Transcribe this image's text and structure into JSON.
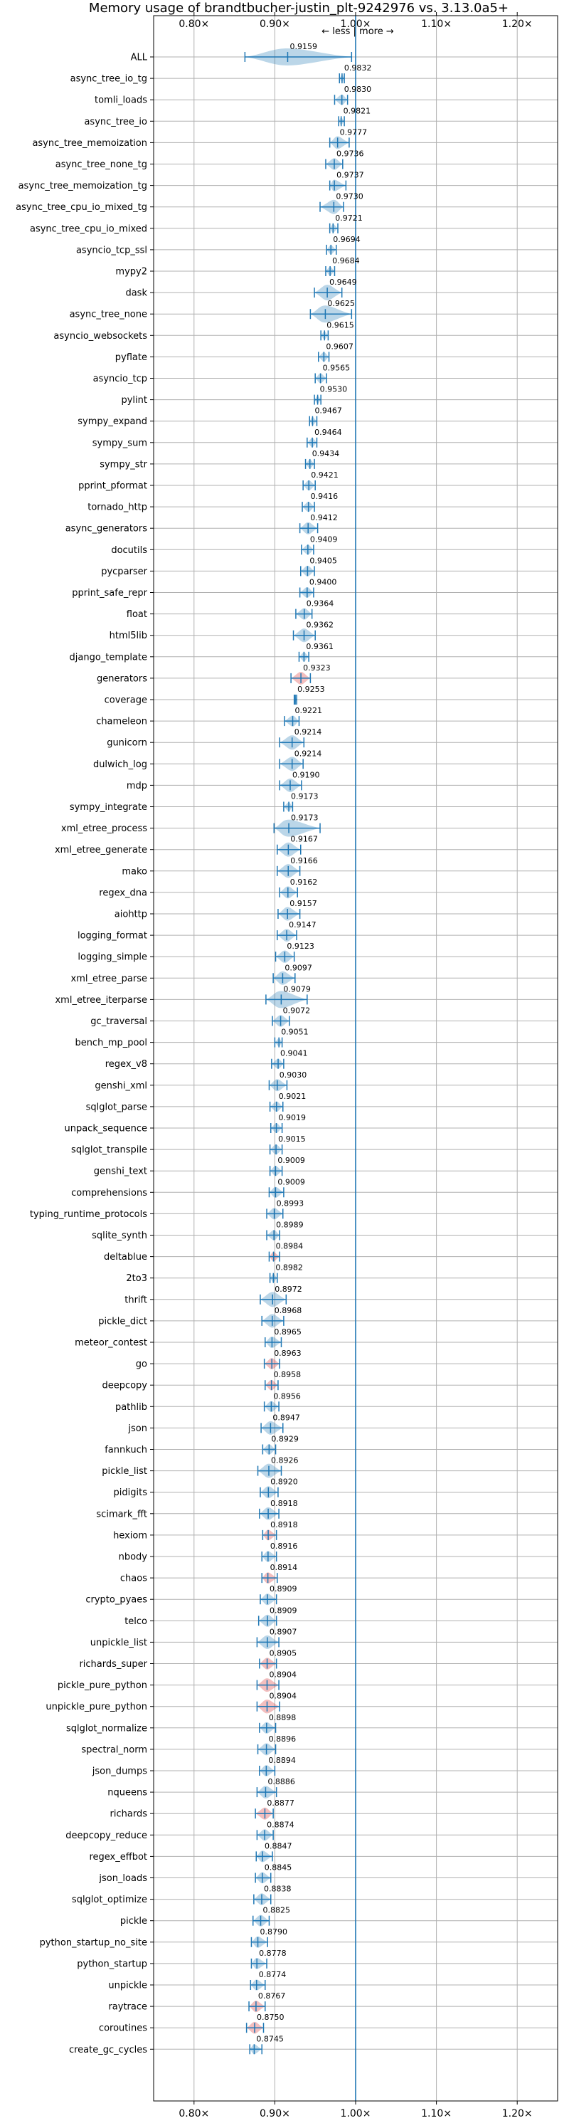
{
  "chart_data": {
    "type": "violin",
    "title": "Memory usage of brandtbucher-justin_plt-9242976 vs. 3.13.0a5+",
    "annotation": "← less | more →",
    "xlim": [
      0.75,
      1.25
    ],
    "xticks": [
      0.8,
      0.9,
      1.0,
      1.1,
      1.2
    ],
    "xtick_labels": [
      "0.80×",
      "0.90×",
      "1.00×",
      "1.10×",
      "1.20×"
    ],
    "reference_line": 1.0,
    "grid": true,
    "colors": {
      "normal": "#1f77b4",
      "worse": "#d62728",
      "reference": "#1f77b4"
    },
    "categories": [
      "ALL",
      "async_tree_io_tg",
      "tomli_loads",
      "async_tree_io",
      "async_tree_memoization",
      "async_tree_none_tg",
      "async_tree_memoization_tg",
      "async_tree_cpu_io_mixed_tg",
      "async_tree_cpu_io_mixed",
      "asyncio_tcp_ssl",
      "mypy2",
      "dask",
      "async_tree_none",
      "asyncio_websockets",
      "pyflate",
      "asyncio_tcp",
      "pylint",
      "sympy_expand",
      "sympy_sum",
      "sympy_str",
      "pprint_pformat",
      "tornado_http",
      "async_generators",
      "docutils",
      "pycparser",
      "pprint_safe_repr",
      "float",
      "html5lib",
      "django_template",
      "generators",
      "coverage",
      "chameleon",
      "gunicorn",
      "dulwich_log",
      "mdp",
      "sympy_integrate",
      "xml_etree_process",
      "xml_etree_generate",
      "mako",
      "regex_dna",
      "aiohttp",
      "logging_format",
      "logging_simple",
      "xml_etree_parse",
      "xml_etree_iterparse",
      "gc_traversal",
      "bench_mp_pool",
      "regex_v8",
      "genshi_xml",
      "sqlglot_parse",
      "unpack_sequence",
      "sqlglot_transpile",
      "genshi_text",
      "comprehensions",
      "typing_runtime_protocols",
      "sqlite_synth",
      "deltablue",
      "2to3",
      "thrift",
      "pickle_dict",
      "meteor_contest",
      "go",
      "deepcopy",
      "pathlib",
      "json",
      "fannkuch",
      "pickle_list",
      "pidigits",
      "scimark_fft",
      "hexiom",
      "nbody",
      "chaos",
      "crypto_pyaes",
      "telco",
      "unpickle_list",
      "richards_super",
      "pickle_pure_python",
      "unpickle_pure_python",
      "sqlglot_normalize",
      "spectral_norm",
      "json_dumps",
      "nqueens",
      "richards",
      "deepcopy_reduce",
      "regex_effbot",
      "json_loads",
      "sqlglot_optimize",
      "pickle",
      "python_startup_no_site",
      "python_startup",
      "unpickle",
      "raytrace",
      "coroutines",
      "create_gc_cycles"
    ],
    "values": [
      0.9159,
      0.9832,
      0.983,
      0.9821,
      0.9777,
      0.9736,
      0.9737,
      0.973,
      0.9721,
      0.9694,
      0.9684,
      0.9649,
      0.9625,
      0.9615,
      0.9607,
      0.9565,
      0.953,
      0.9467,
      0.9464,
      0.9434,
      0.9421,
      0.9416,
      0.9412,
      0.9409,
      0.9405,
      0.94,
      0.9364,
      0.9362,
      0.9361,
      0.9323,
      0.9253,
      0.9221,
      0.9214,
      0.9214,
      0.919,
      0.9173,
      0.9173,
      0.9167,
      0.9166,
      0.9162,
      0.9157,
      0.9147,
      0.9123,
      0.9097,
      0.9079,
      0.9072,
      0.9051,
      0.9041,
      0.903,
      0.9021,
      0.9019,
      0.9015,
      0.9009,
      0.9009,
      0.8993,
      0.8989,
      0.8984,
      0.8982,
      0.8972,
      0.8968,
      0.8965,
      0.8963,
      0.8958,
      0.8956,
      0.8947,
      0.8929,
      0.8926,
      0.892,
      0.8918,
      0.8918,
      0.8916,
      0.8914,
      0.8909,
      0.8909,
      0.8907,
      0.8905,
      0.8904,
      0.8904,
      0.8898,
      0.8896,
      0.8894,
      0.8886,
      0.8877,
      0.8874,
      0.8847,
      0.8845,
      0.8838,
      0.8825,
      0.879,
      0.8778,
      0.8774,
      0.8767,
      0.875,
      0.8745
    ],
    "value_labels": [
      "0.9159",
      "0.9832",
      "0.9830",
      "0.9821",
      "0.9777",
      "0.9736",
      "0.9737",
      "0.9730",
      "0.9721",
      "0.9694",
      "0.9684",
      "0.9649",
      "0.9625",
      "0.9615",
      "0.9607",
      "0.9565",
      "0.9530",
      "0.9467",
      "0.9464",
      "0.9434",
      "0.9421",
      "0.9416",
      "0.9412",
      "0.9409",
      "0.9405",
      "0.9400",
      "0.9364",
      "0.9362",
      "0.9361",
      "0.9323",
      "0.9253",
      "0.9221",
      "0.9214",
      "0.9214",
      "0.9190",
      "0.9173",
      "0.9173",
      "0.9167",
      "0.9166",
      "0.9162",
      "0.9157",
      "0.9147",
      "0.9123",
      "0.9097",
      "0.9079",
      "0.9072",
      "0.9051",
      "0.9041",
      "0.9030",
      "0.9021",
      "0.9019",
      "0.9015",
      "0.9009",
      "0.9009",
      "0.8993",
      "0.8989",
      "0.8984",
      "0.8982",
      "0.8972",
      "0.8968",
      "0.8965",
      "0.8963",
      "0.8958",
      "0.8956",
      "0.8947",
      "0.8929",
      "0.8926",
      "0.8920",
      "0.8918",
      "0.8918",
      "0.8916",
      "0.8914",
      "0.8909",
      "0.8909",
      "0.8907",
      "0.8905",
      "0.8904",
      "0.8904",
      "0.8898",
      "0.8896",
      "0.8894",
      "0.8886",
      "0.8877",
      "0.8874",
      "0.8847",
      "0.8845",
      "0.8838",
      "0.8825",
      "0.8790",
      "0.8778",
      "0.8774",
      "0.8767",
      "0.8750",
      "0.8745"
    ],
    "ranges": [
      [
        0.863,
        0.995
      ],
      [
        0.98,
        0.986
      ],
      [
        0.974,
        0.99
      ],
      [
        0.979,
        0.986
      ],
      [
        0.968,
        0.992
      ],
      [
        0.963,
        0.984
      ],
      [
        0.968,
        0.988
      ],
      [
        0.956,
        0.985
      ],
      [
        0.968,
        0.978
      ],
      [
        0.964,
        0.976
      ],
      [
        0.963,
        0.974
      ],
      [
        0.949,
        0.983
      ],
      [
        0.944,
        0.995
      ],
      [
        0.957,
        0.966
      ],
      [
        0.954,
        0.967
      ],
      [
        0.95,
        0.964
      ],
      [
        0.949,
        0.957
      ],
      [
        0.943,
        0.952
      ],
      [
        0.94,
        0.952
      ],
      [
        0.938,
        0.949
      ],
      [
        0.935,
        0.95
      ],
      [
        0.934,
        0.949
      ],
      [
        0.931,
        0.953
      ],
      [
        0.933,
        0.948
      ],
      [
        0.932,
        0.949
      ],
      [
        0.931,
        0.948
      ],
      [
        0.926,
        0.946
      ],
      [
        0.923,
        0.95
      ],
      [
        0.93,
        0.942
      ],
      [
        0.92,
        0.944
      ],
      [
        0.924,
        0.927
      ],
      [
        0.912,
        0.93
      ],
      [
        0.906,
        0.936
      ],
      [
        0.906,
        0.935
      ],
      [
        0.906,
        0.933
      ],
      [
        0.911,
        0.922
      ],
      [
        0.899,
        0.956
      ],
      [
        0.903,
        0.932
      ],
      [
        0.903,
        0.931
      ],
      [
        0.906,
        0.928
      ],
      [
        0.904,
        0.931
      ],
      [
        0.903,
        0.927
      ],
      [
        0.901,
        0.924
      ],
      [
        0.898,
        0.925
      ],
      [
        0.889,
        0.94
      ],
      [
        0.897,
        0.918
      ],
      [
        0.9,
        0.909
      ],
      [
        0.896,
        0.911
      ],
      [
        0.893,
        0.915
      ],
      [
        0.894,
        0.91
      ],
      [
        0.895,
        0.909
      ],
      [
        0.894,
        0.909
      ],
      [
        0.894,
        0.909
      ],
      [
        0.893,
        0.911
      ],
      [
        0.89,
        0.91
      ],
      [
        0.89,
        0.906
      ],
      [
        0.893,
        0.906
      ],
      [
        0.894,
        0.903
      ],
      [
        0.882,
        0.914
      ],
      [
        0.884,
        0.911
      ],
      [
        0.888,
        0.908
      ],
      [
        0.887,
        0.906
      ],
      [
        0.888,
        0.904
      ],
      [
        0.887,
        0.905
      ],
      [
        0.883,
        0.91
      ],
      [
        0.885,
        0.901
      ],
      [
        0.879,
        0.908
      ],
      [
        0.882,
        0.904
      ],
      [
        0.881,
        0.905
      ],
      [
        0.885,
        0.902
      ],
      [
        0.884,
        0.902
      ],
      [
        0.884,
        0.903
      ],
      [
        0.882,
        0.902
      ],
      [
        0.88,
        0.902
      ],
      [
        0.878,
        0.905
      ],
      [
        0.881,
        0.902
      ],
      [
        0.878,
        0.905
      ],
      [
        0.878,
        0.906
      ],
      [
        0.881,
        0.901
      ],
      [
        0.879,
        0.901
      ],
      [
        0.881,
        0.9
      ],
      [
        0.878,
        0.902
      ],
      [
        0.876,
        0.898
      ],
      [
        0.878,
        0.898
      ],
      [
        0.877,
        0.897
      ],
      [
        0.876,
        0.895
      ],
      [
        0.874,
        0.895
      ],
      [
        0.873,
        0.893
      ],
      [
        0.871,
        0.891
      ],
      [
        0.871,
        0.89
      ],
      [
        0.87,
        0.888
      ],
      [
        0.868,
        0.888
      ],
      [
        0.865,
        0.886
      ],
      [
        0.869,
        0.884
      ]
    ],
    "worse": [
      "generators",
      "deltablue",
      "go",
      "deepcopy",
      "hexiom",
      "chaos",
      "richards_super",
      "pickle_pure_python",
      "unpickle_pure_python",
      "richards",
      "raytrace",
      "coroutines"
    ]
  }
}
